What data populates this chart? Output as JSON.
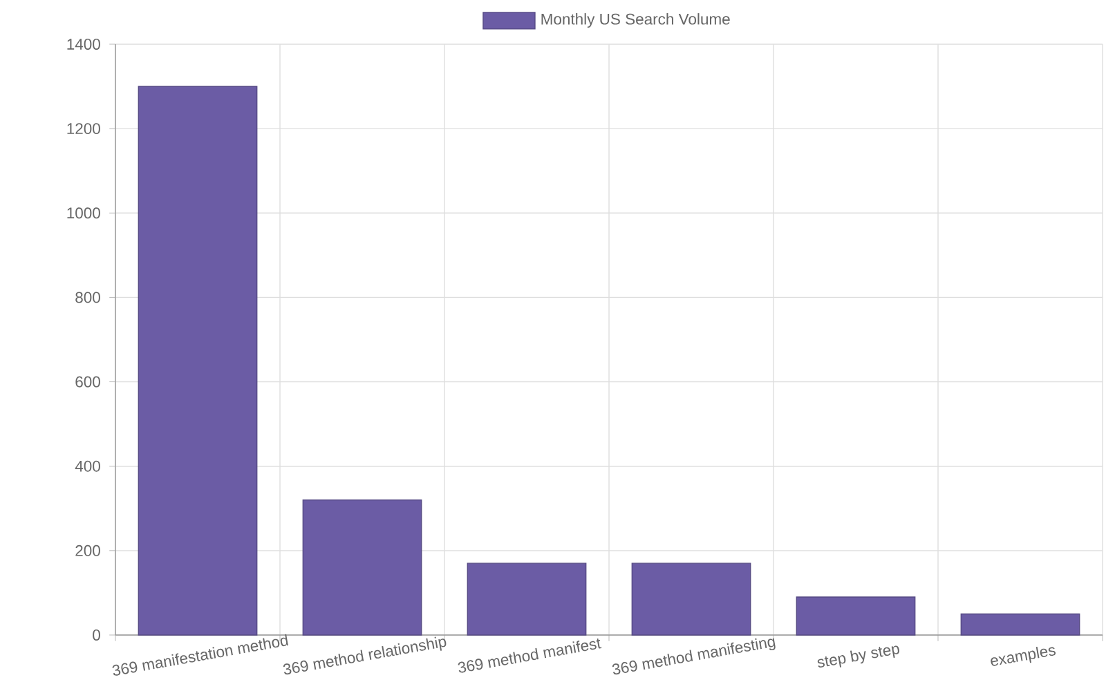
{
  "chart_data": {
    "type": "bar",
    "categories": [
      "369 manifestation method",
      "369 method relationship",
      "369 method manifest",
      "369 method manifesting",
      "step by step",
      "examples"
    ],
    "series": [
      {
        "name": "Monthly US Search Volume",
        "color": "#6b5ca5",
        "values": [
          1300,
          320,
          170,
          170,
          90,
          50
        ]
      }
    ],
    "ylim": [
      0,
      1400
    ],
    "yticks": [
      0,
      200,
      400,
      600,
      800,
      1000,
      1200,
      1400
    ],
    "grid": true,
    "legend": "top"
  }
}
